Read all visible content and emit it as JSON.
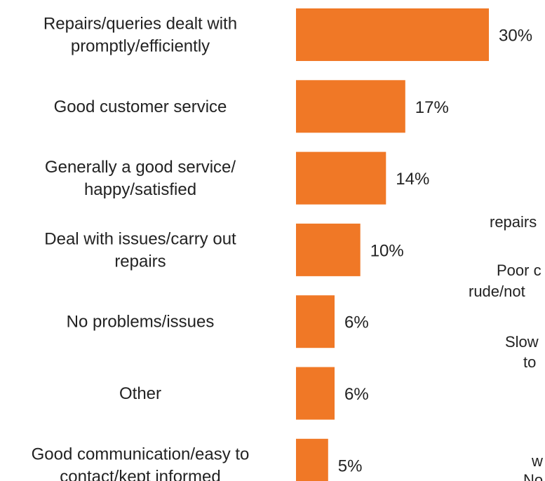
{
  "chart_data": {
    "type": "bar",
    "orientation": "horizontal",
    "title": "",
    "xlabel": "",
    "ylabel": "",
    "categories": [
      [
        "Repairs/queries dealt with",
        "promptly/efficiently"
      ],
      [
        "Good customer service"
      ],
      [
        "Generally a good service/",
        "happy/satisfied"
      ],
      [
        "Deal with issues/carry out",
        "repairs"
      ],
      [
        "No problems/issues"
      ],
      [
        "Other"
      ],
      [
        "Good communication/easy to",
        "contact/kept informed"
      ]
    ],
    "values": [
      30,
      17,
      14,
      10,
      6,
      6,
      5
    ],
    "value_labels": [
      "30%",
      "17%",
      "14%",
      "10%",
      "6%",
      "6%",
      "5%"
    ],
    "xlim": [
      0,
      30
    ],
    "grid": false,
    "legend": "none",
    "bar_color": "#F07826"
  },
  "clipped_fragments": [
    "repairs",
    "Poor c",
    "rude/not",
    "Slow",
    "to",
    "w",
    "No"
  ]
}
